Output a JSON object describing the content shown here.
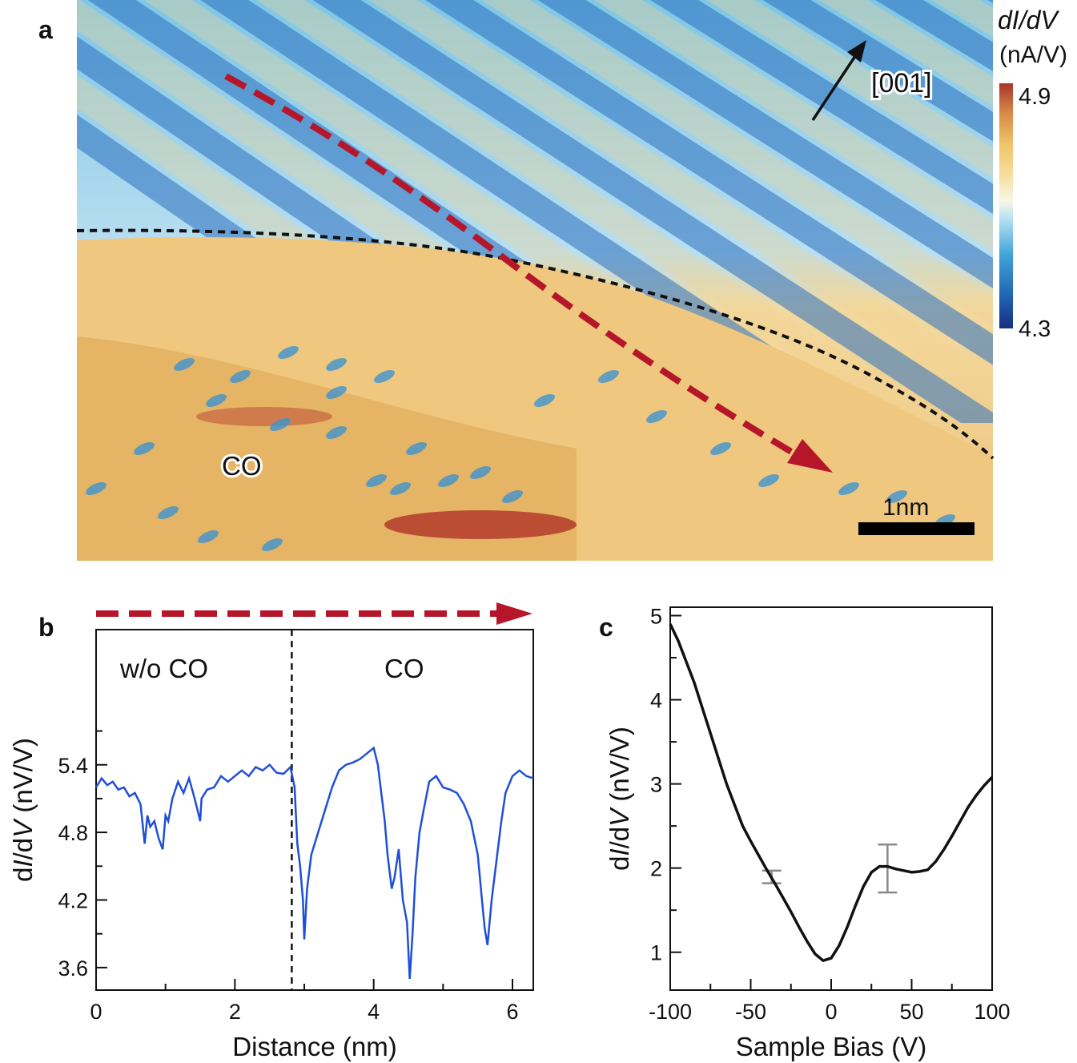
{
  "panels": {
    "a": "a",
    "b": "b",
    "c": "c"
  },
  "chart_data": [
    {
      "type": "heatmap",
      "panel": "a",
      "colorbar": {
        "label": "dI/dV",
        "units": "(nA/V)",
        "max_label": "4.9",
        "min_label": "4.3",
        "range": [
          4.3,
          4.9
        ]
      },
      "annotations": {
        "direction": "[001]",
        "adsorbate": "CO",
        "scale_bar": "1nm"
      },
      "line_cut": "dashed red arrow across the CO boundary",
      "boundary": "dashed black curve separating striped (w/o CO) and CO-covered regions"
    },
    {
      "type": "line",
      "panel": "b",
      "xlabel": "Distance (nm)",
      "ylabel_pre": "d",
      "ylabel_i": "I",
      "ylabel_mid": "/d",
      "ylabel_v": "V",
      "ylabel_post": " (nV/V)",
      "xlim": [
        0,
        6.3
      ],
      "ylim": [
        3.4,
        6.6
      ],
      "xticks": [
        0,
        2,
        4,
        6
      ],
      "yticks": [
        3.6,
        4.2,
        4.8,
        5.4
      ],
      "xtick_labels": [
        "0",
        "2",
        "4",
        "6"
      ],
      "ytick_labels": [
        "3.6",
        "4.2",
        "4.8",
        "5.4"
      ],
      "region_labels": {
        "left": "w/o CO",
        "right": "CO"
      },
      "boundary_x": 2.82,
      "series": [
        {
          "name": "line profile",
          "color": "#1f4fd6",
          "x": [
            0.0,
            0.08,
            0.16,
            0.24,
            0.32,
            0.4,
            0.48,
            0.56,
            0.64,
            0.7,
            0.74,
            0.78,
            0.84,
            0.9,
            0.96,
            1.0,
            1.04,
            1.1,
            1.18,
            1.26,
            1.34,
            1.42,
            1.48,
            1.5,
            1.52,
            1.6,
            1.7,
            1.8,
            1.9,
            2.0,
            2.1,
            2.2,
            2.3,
            2.4,
            2.5,
            2.6,
            2.7,
            2.8,
            2.86,
            2.9,
            2.94,
            2.98,
            3.0,
            3.04,
            3.1,
            3.2,
            3.3,
            3.4,
            3.5,
            3.6,
            3.7,
            3.8,
            3.9,
            4.0,
            4.06,
            4.1,
            4.16,
            4.2,
            4.26,
            4.3,
            4.36,
            4.42,
            4.48,
            4.52,
            4.56,
            4.6,
            4.66,
            4.72,
            4.8,
            4.9,
            5.0,
            5.1,
            5.2,
            5.3,
            5.4,
            5.5,
            5.56,
            5.6,
            5.64,
            5.7,
            5.78,
            5.84,
            5.9,
            6.0,
            6.1,
            6.2,
            6.3
          ],
          "y": [
            5.2,
            5.28,
            5.22,
            5.25,
            5.18,
            5.2,
            5.12,
            5.15,
            5.05,
            4.7,
            4.95,
            4.85,
            4.9,
            4.75,
            4.65,
            4.95,
            4.9,
            5.1,
            5.25,
            5.15,
            5.28,
            5.1,
            4.95,
            4.9,
            5.1,
            5.18,
            5.2,
            5.3,
            5.25,
            5.3,
            5.35,
            5.3,
            5.38,
            5.35,
            5.4,
            5.33,
            5.32,
            5.38,
            5.2,
            4.7,
            4.5,
            4.2,
            3.85,
            4.3,
            4.6,
            4.8,
            5.0,
            5.2,
            5.35,
            5.4,
            5.42,
            5.45,
            5.5,
            5.55,
            5.4,
            5.2,
            4.9,
            4.6,
            4.3,
            4.4,
            4.65,
            4.2,
            4.0,
            3.5,
            3.9,
            4.4,
            4.8,
            5.0,
            5.25,
            5.3,
            5.2,
            5.18,
            5.15,
            5.05,
            4.9,
            4.6,
            4.2,
            3.95,
            3.8,
            4.2,
            4.6,
            4.9,
            5.15,
            5.3,
            5.35,
            5.3,
            5.28
          ]
        }
      ]
    },
    {
      "type": "line",
      "panel": "c",
      "xlabel": "Sample Bias (V)",
      "ylabel_pre": "d",
      "ylabel_i": "I",
      "ylabel_mid": "/d",
      "ylabel_v": "V",
      "ylabel_post": " (nV/V)",
      "xlim": [
        -100,
        100
      ],
      "ylim": [
        0.55,
        5.1
      ],
      "xticks": [
        -100,
        -50,
        0,
        50,
        100
      ],
      "yticks": [
        1,
        2,
        3,
        4,
        5
      ],
      "xtick_labels": [
        "-100",
        "-50",
        "0",
        "50",
        "100"
      ],
      "ytick_labels": [
        "1",
        "2",
        "3",
        "4",
        "5"
      ],
      "series": [
        {
          "name": "spectrum",
          "color": "#111111",
          "x": [
            -100,
            -95,
            -90,
            -85,
            -80,
            -75,
            -70,
            -65,
            -60,
            -55,
            -50,
            -45,
            -40,
            -35,
            -30,
            -25,
            -20,
            -15,
            -10,
            -5,
            0,
            5,
            10,
            15,
            20,
            25,
            30,
            35,
            40,
            45,
            50,
            55,
            60,
            65,
            70,
            75,
            80,
            85,
            90,
            95,
            100
          ],
          "y": [
            4.9,
            4.7,
            4.45,
            4.2,
            3.9,
            3.6,
            3.3,
            3.0,
            2.75,
            2.5,
            2.32,
            2.15,
            1.98,
            1.82,
            1.65,
            1.48,
            1.3,
            1.13,
            0.98,
            0.9,
            0.93,
            1.08,
            1.3,
            1.55,
            1.78,
            1.95,
            2.02,
            2.02,
            1.99,
            1.97,
            1.95,
            1.96,
            1.98,
            2.08,
            2.22,
            2.38,
            2.55,
            2.72,
            2.86,
            2.98,
            3.08
          ]
        }
      ],
      "error_bars": [
        {
          "x": -37,
          "low": 1.82,
          "high": 1.97
        },
        {
          "x": 35,
          "low": 1.71,
          "high": 2.28
        }
      ]
    }
  ]
}
